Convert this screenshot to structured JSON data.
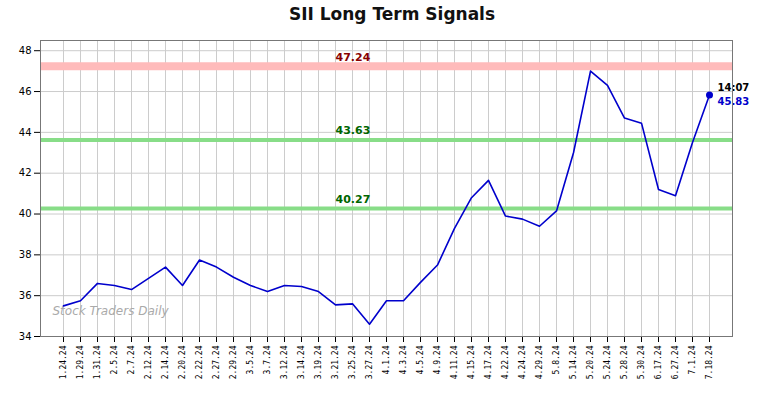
{
  "chart_data": {
    "type": "line",
    "title": "SII Long Term Signals",
    "categories": [
      "1.24.24",
      "1.29.24",
      "1.31.24",
      "2.5.24",
      "2.7.24",
      "2.12.24",
      "2.14.24",
      "2.20.24",
      "2.22.24",
      "2.27.24",
      "2.29.24",
      "3.5.24",
      "3.7.24",
      "3.12.24",
      "3.14.24",
      "3.19.24",
      "3.21.24",
      "3.25.24",
      "3.27.24",
      "4.1.24",
      "4.3.24",
      "4.5.24",
      "4.9.24",
      "4.11.24",
      "4.15.24",
      "4.17.24",
      "4.22.24",
      "4.24.24",
      "4.29.24",
      "5.8.24",
      "5.14.24",
      "5.20.24",
      "5.24.24",
      "5.28.24",
      "5.30.24",
      "6.17.24",
      "6.27.24",
      "7.1.24",
      "7.18.24"
    ],
    "values": [
      35.5,
      35.75,
      36.6,
      36.5,
      36.3,
      36.85,
      37.4,
      36.5,
      37.75,
      37.4,
      36.9,
      36.5,
      36.2,
      36.5,
      36.45,
      36.2,
      35.55,
      35.6,
      34.6,
      35.75,
      35.75,
      36.65,
      37.5,
      39.3,
      40.8,
      41.65,
      39.9,
      39.75,
      39.4,
      40.15,
      43.0,
      47.0,
      46.3,
      44.7,
      44.45,
      41.2,
      40.9,
      43.5,
      45.83
    ],
    "color": "#0000cc",
    "ylim": [
      34,
      48.5
    ],
    "yticks": [
      34,
      36,
      38,
      40,
      42,
      44,
      46,
      48
    ],
    "grid": true,
    "hlines": [
      {
        "value": 47.24,
        "label": "47.24",
        "color": "#ffbbbb",
        "label_color": "#880000"
      },
      {
        "value": 43.63,
        "label": "43.63",
        "color": "#88dd88",
        "label_color": "#006600"
      },
      {
        "value": 40.27,
        "label": "40.27",
        "color": "#88dd88",
        "label_color": "#006600"
      }
    ],
    "last_point": {
      "marker": "circle",
      "annotations": [
        {
          "text": "14:07",
          "color": "#000000"
        },
        {
          "text": "45.83",
          "color": "#0000cc"
        }
      ]
    },
    "watermark": "Stock Traders Daily",
    "watermark_color": "#aaaaaa"
  }
}
